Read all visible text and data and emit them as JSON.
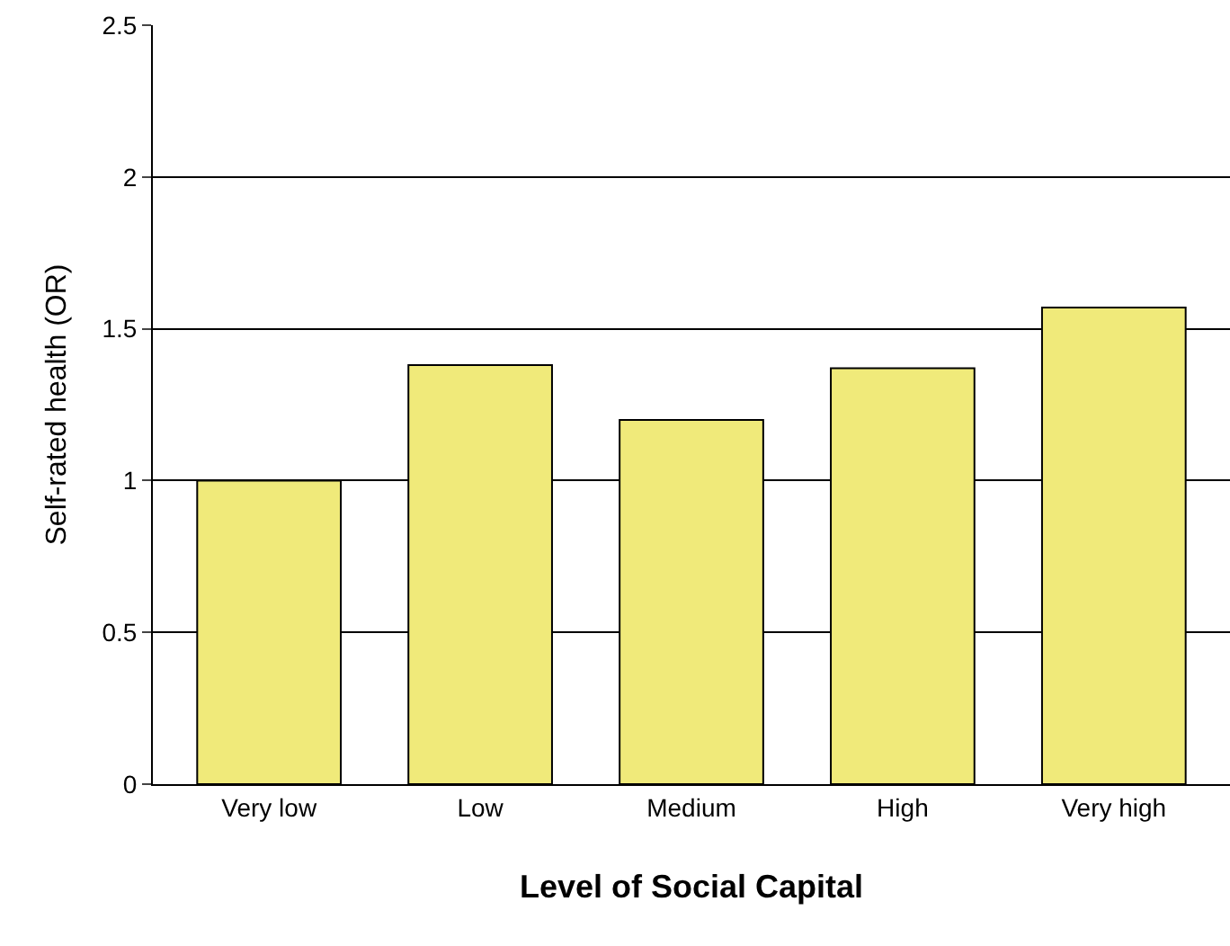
{
  "chart_data": {
    "type": "bar",
    "xlabel": "Level of Social Capital",
    "ylabel": "Self-rated health (OR)",
    "categories": [
      "Very low",
      "Low",
      "Medium",
      "High",
      "Very high"
    ],
    "values": [
      1.0,
      1.38,
      1.2,
      1.37,
      1.57
    ],
    "color": "#f0ea7a",
    "ylim": [
      0,
      2.5
    ],
    "yticks": [
      0,
      0.5,
      1,
      1.5,
      2,
      2.5
    ],
    "grid": "y",
    "legend": false
  }
}
